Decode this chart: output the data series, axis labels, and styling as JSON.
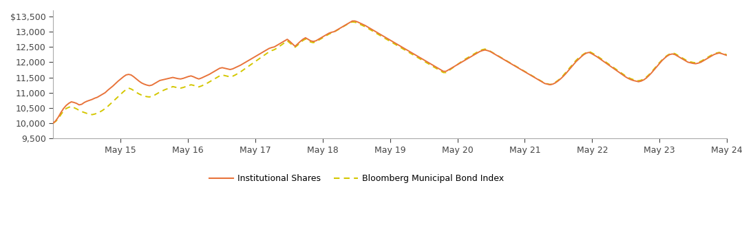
{
  "ylim": [
    9500,
    13700
  ],
  "yticks": [
    9500,
    10000,
    10500,
    11000,
    11500,
    12000,
    12500,
    13000,
    13500
  ],
  "xtick_labels": [
    "May 15",
    "May 16",
    "May 17",
    "May 18",
    "May 19",
    "May 20",
    "May 21",
    "May 22",
    "May 23",
    "May 24"
  ],
  "line1_color": "#E8733A",
  "line2_color": "#D4C700",
  "line1_label": "Institutional Shares",
  "line2_label": "Bloomberg Municipal Bond Index",
  "background_color": "#ffffff",
  "institutional_shares": [
    10000,
    10080,
    10200,
    10350,
    10480,
    10580,
    10650,
    10700,
    10680,
    10650,
    10600,
    10620,
    10680,
    10720,
    10750,
    10780,
    10820,
    10850,
    10900,
    10950,
    11000,
    11080,
    11150,
    11220,
    11300,
    11380,
    11450,
    11520,
    11580,
    11600,
    11580,
    11520,
    11450,
    11380,
    11320,
    11280,
    11250,
    11230,
    11250,
    11300,
    11350,
    11400,
    11420,
    11440,
    11460,
    11480,
    11500,
    11480,
    11460,
    11450,
    11470,
    11500,
    11530,
    11550,
    11520,
    11480,
    11450,
    11480,
    11520,
    11560,
    11600,
    11650,
    11700,
    11750,
    11800,
    11820,
    11800,
    11780,
    11760,
    11780,
    11820,
    11860,
    11900,
    11950,
    12000,
    12050,
    12100,
    12150,
    12200,
    12250,
    12300,
    12350,
    12400,
    12450,
    12480,
    12500,
    12550,
    12600,
    12650,
    12700,
    12750,
    12680,
    12600,
    12520,
    12600,
    12680,
    12750,
    12800,
    12750,
    12700,
    12680,
    12700,
    12750,
    12800,
    12850,
    12900,
    12950,
    12980,
    13000,
    13050,
    13100,
    13150,
    13200,
    13250,
    13300,
    13350,
    13350,
    13320,
    13280,
    13240,
    13200,
    13150,
    13100,
    13050,
    13000,
    12950,
    12900,
    12850,
    12800,
    12750,
    12700,
    12650,
    12600,
    12550,
    12500,
    12450,
    12400,
    12350,
    12300,
    12250,
    12200,
    12150,
    12100,
    12050,
    12000,
    11950,
    11900,
    11850,
    11800,
    11750,
    11700,
    11700,
    11750,
    11800,
    11850,
    11900,
    11950,
    12000,
    12050,
    12100,
    12150,
    12200,
    12250,
    12300,
    12350,
    12380,
    12400,
    12380,
    12350,
    12300,
    12250,
    12200,
    12150,
    12100,
    12050,
    12000,
    11950,
    11900,
    11850,
    11800,
    11750,
    11700,
    11650,
    11600,
    11550,
    11500,
    11450,
    11400,
    11350,
    11300,
    11280,
    11260,
    11280,
    11320,
    11380,
    11450,
    11530,
    11620,
    11720,
    11820,
    11920,
    12020,
    12100,
    12180,
    12250,
    12300,
    12320,
    12280,
    12230,
    12180,
    12120,
    12060,
    12000,
    11940,
    11880,
    11820,
    11760,
    11700,
    11640,
    11580,
    11520,
    11470,
    11430,
    11400,
    11380,
    11360,
    11380,
    11420,
    11480,
    11560,
    11650,
    11750,
    11850,
    11950,
    12050,
    12130,
    12200,
    12250,
    12270,
    12250,
    12200,
    12150,
    12100,
    12050,
    12000,
    11980,
    11960,
    11950,
    11970,
    12000,
    12050,
    12100,
    12150,
    12200,
    12250,
    12280,
    12300,
    12280,
    12250,
    12220
  ],
  "bloomberg_index": [
    10000,
    10060,
    10150,
    10280,
    10400,
    10480,
    10520,
    10550,
    10510,
    10470,
    10420,
    10380,
    10350,
    10320,
    10300,
    10280,
    10300,
    10330,
    10370,
    10420,
    10480,
    10550,
    10630,
    10710,
    10790,
    10870,
    10950,
    11030,
    11100,
    11150,
    11120,
    11070,
    11010,
    10960,
    10920,
    10890,
    10870,
    10860,
    10880,
    10920,
    10970,
    11020,
    11060,
    11100,
    11130,
    11160,
    11200,
    11180,
    11160,
    11150,
    11170,
    11200,
    11230,
    11260,
    11240,
    11210,
    11190,
    11220,
    11260,
    11300,
    11350,
    11400,
    11450,
    11500,
    11550,
    11580,
    11560,
    11540,
    11520,
    11540,
    11580,
    11630,
    11680,
    11740,
    11800,
    11860,
    11920,
    11980,
    12040,
    12100,
    12160,
    12220,
    12280,
    12340,
    12380,
    12410,
    12460,
    12520,
    12580,
    12640,
    12700,
    12630,
    12560,
    12490,
    12560,
    12640,
    12710,
    12760,
    12710,
    12660,
    12640,
    12670,
    12720,
    12770,
    12820,
    12870,
    12920,
    12960,
    12990,
    13040,
    13090,
    13140,
    13190,
    13240,
    13280,
    13320,
    13310,
    13280,
    13240,
    13200,
    13160,
    13110,
    13060,
    13010,
    12960,
    12910,
    12860,
    12810,
    12760,
    12710,
    12660,
    12610,
    12560,
    12510,
    12460,
    12410,
    12360,
    12310,
    12260,
    12210,
    12160,
    12110,
    12060,
    12010,
    11960,
    11910,
    11860,
    11810,
    11760,
    11710,
    11660,
    11660,
    11720,
    11780,
    11840,
    11900,
    11960,
    12020,
    12080,
    12130,
    12180,
    12230,
    12280,
    12330,
    12380,
    12410,
    12430,
    12400,
    12360,
    12310,
    12260,
    12210,
    12160,
    12110,
    12060,
    12010,
    11960,
    11910,
    11860,
    11810,
    11760,
    11710,
    11660,
    11610,
    11560,
    11510,
    11460,
    11410,
    11360,
    11310,
    11290,
    11270,
    11290,
    11340,
    11400,
    11470,
    11560,
    11660,
    11760,
    11860,
    11960,
    12060,
    12140,
    12210,
    12270,
    12320,
    12350,
    12310,
    12260,
    12210,
    12150,
    12090,
    12030,
    11970,
    11910,
    11850,
    11790,
    11730,
    11670,
    11610,
    11550,
    11500,
    11460,
    11430,
    11410,
    11390,
    11410,
    11450,
    11510,
    11590,
    11680,
    11780,
    11880,
    11980,
    12070,
    12150,
    12220,
    12270,
    12300,
    12280,
    12230,
    12180,
    12130,
    12080,
    12030,
    12010,
    11990,
    11980,
    12000,
    12030,
    12080,
    12130,
    12180,
    12230,
    12270,
    12300,
    12320,
    12300,
    12270,
    12240
  ]
}
